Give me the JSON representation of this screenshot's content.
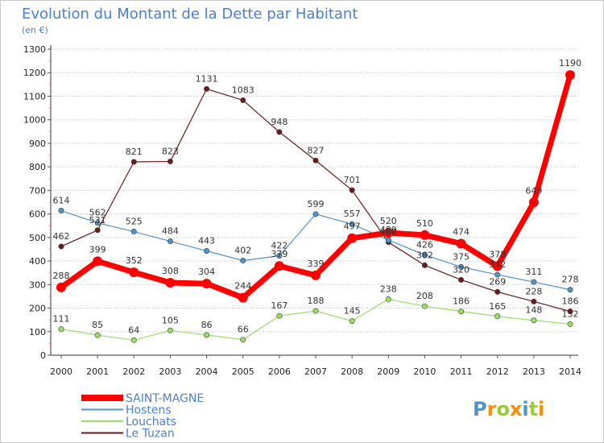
{
  "chart_data": {
    "type": "line",
    "title": "Evolution du Montant de la Dette par Habitant",
    "subtitle": "(en €)",
    "x": [
      "2000",
      "2001",
      "2002",
      "2003",
      "2004",
      "2005",
      "2006",
      "2007",
      "2008",
      "2009",
      "2010",
      "2011",
      "2012",
      "2013",
      "2014"
    ],
    "ylim": [
      0,
      1300
    ],
    "yticks": [
      0,
      100,
      200,
      300,
      400,
      500,
      600,
      700,
      800,
      900,
      1000,
      1100,
      1200,
      1300
    ],
    "grid": "horizontal-dotted",
    "legend_position": "bottom-left",
    "series": [
      {
        "name": "SAINT-MAGNE",
        "color": "#ff0000",
        "values": [
          288,
          399,
          352,
          308,
          304,
          244,
          379,
          339,
          497,
          520,
          510,
          474,
          378,
          649,
          1190
        ]
      },
      {
        "name": "Hostens",
        "color": "#4f94cd",
        "values": [
          614,
          562,
          525,
          484,
          443,
          402,
          422,
          599,
          557,
          489,
          426,
          375,
          342,
          311,
          278
        ]
      },
      {
        "name": "Louchats",
        "color": "#99dd66",
        "values": [
          111,
          85,
          64,
          105,
          86,
          66,
          167,
          188,
          145,
          238,
          208,
          186,
          165,
          148,
          132
        ]
      },
      {
        "name": "Le Tuzan",
        "color": "#6b1a1a",
        "values": [
          462,
          531,
          821,
          823,
          1131,
          1083,
          948,
          827,
          701,
          480,
          382,
          320,
          269,
          228,
          186
        ]
      }
    ]
  },
  "logo": {
    "text": "Proxiti",
    "letters": [
      "P",
      "r",
      "o",
      "x",
      "i",
      "t",
      "i"
    ],
    "colors": [
      "#4f94cd",
      "#ff8c00",
      "#99cc33",
      "#ff8c00",
      "#4f94cd",
      "#99cc33",
      "#ff8c00"
    ]
  }
}
